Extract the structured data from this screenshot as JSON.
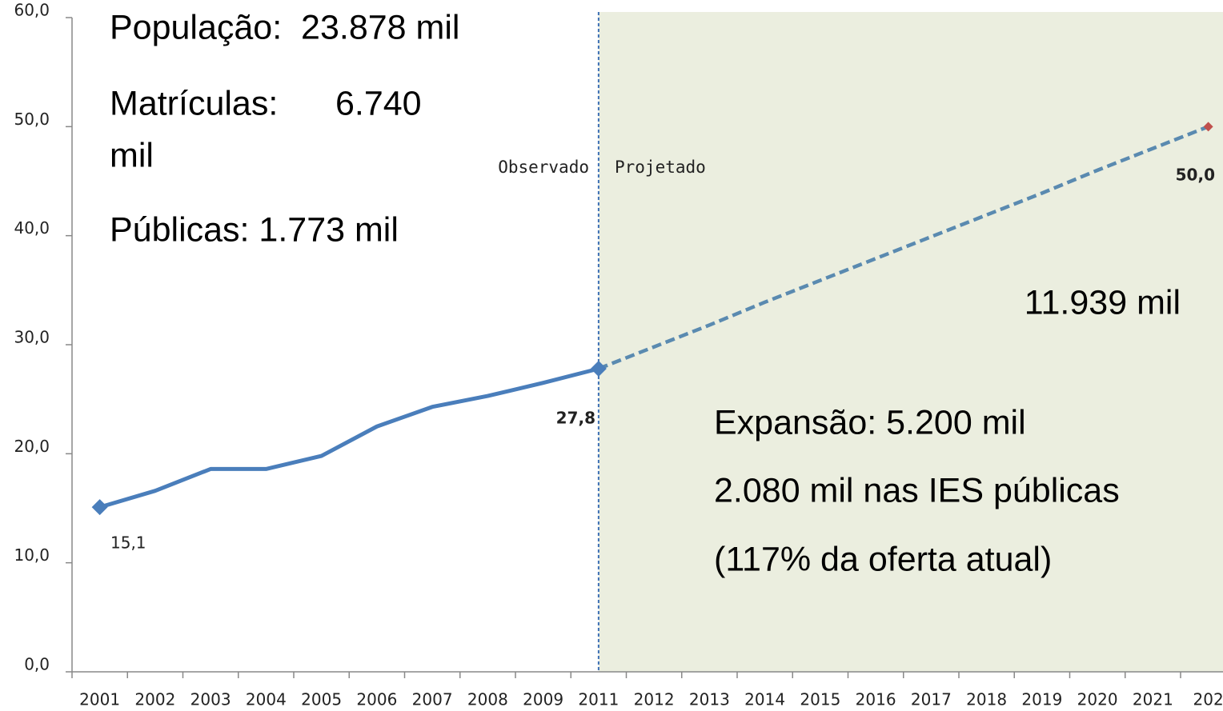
{
  "chart_data": {
    "type": "line",
    "categories": [
      "2001",
      "2002",
      "2003",
      "2004",
      "2005",
      "2006",
      "2007",
      "2008",
      "2009",
      "2011",
      "2012",
      "2013",
      "2014",
      "2015",
      "2016",
      "2017",
      "2018",
      "2019",
      "2020",
      "2021",
      "202"
    ],
    "series": [
      {
        "name": "Observado",
        "color": "#4a7ebb",
        "values": [
          15.1,
          16.6,
          18.6,
          18.6,
          19.8,
          22.5,
          24.3,
          25.3,
          26.5,
          27.8,
          null,
          null,
          null,
          null,
          null,
          null,
          null,
          null,
          null,
          null,
          null
        ],
        "value_labels": [
          "15,1",
          null,
          null,
          null,
          null,
          null,
          null,
          null,
          null,
          "27,8",
          null,
          null,
          null,
          null,
          null,
          null,
          null,
          null,
          null,
          null,
          null
        ]
      },
      {
        "name": "Projetado",
        "color": "#5a8ab0",
        "end_marker_color": "#c0504d",
        "values": [
          null,
          null,
          null,
          null,
          null,
          null,
          null,
          null,
          null,
          27.8,
          29.8,
          31.8,
          33.9,
          35.9,
          37.9,
          39.9,
          41.9,
          43.9,
          46.0,
          48.0,
          50.0
        ],
        "value_labels": [
          null,
          null,
          null,
          null,
          null,
          null,
          null,
          null,
          null,
          null,
          null,
          null,
          null,
          null,
          null,
          null,
          null,
          null,
          null,
          null,
          "50,0"
        ]
      }
    ],
    "ylim": [
      0,
      60
    ],
    "yticks": [
      {
        "value": 0,
        "label": "0,0"
      },
      {
        "value": 10,
        "label": "10,0"
      },
      {
        "value": 20,
        "label": "20,0"
      },
      {
        "value": 30,
        "label": "30,0"
      },
      {
        "value": 40,
        "label": "40,0"
      },
      {
        "value": 50,
        "label": "50,0"
      },
      {
        "value": 60,
        "label": "60,0"
      }
    ],
    "region_labels": [
      "Observado",
      "Projetado"
    ],
    "projection_fill": "#ebeedf",
    "annotations": [
      "População:  23.878 mil",
      "Matrículas:      6.740",
      "mil",
      "Públicas: 1.773 mil",
      "11.939 mil",
      "Expansão: 5.200 mil",
      "2.080 mil nas IES públicas",
      "(117% da oferta atual)"
    ]
  }
}
